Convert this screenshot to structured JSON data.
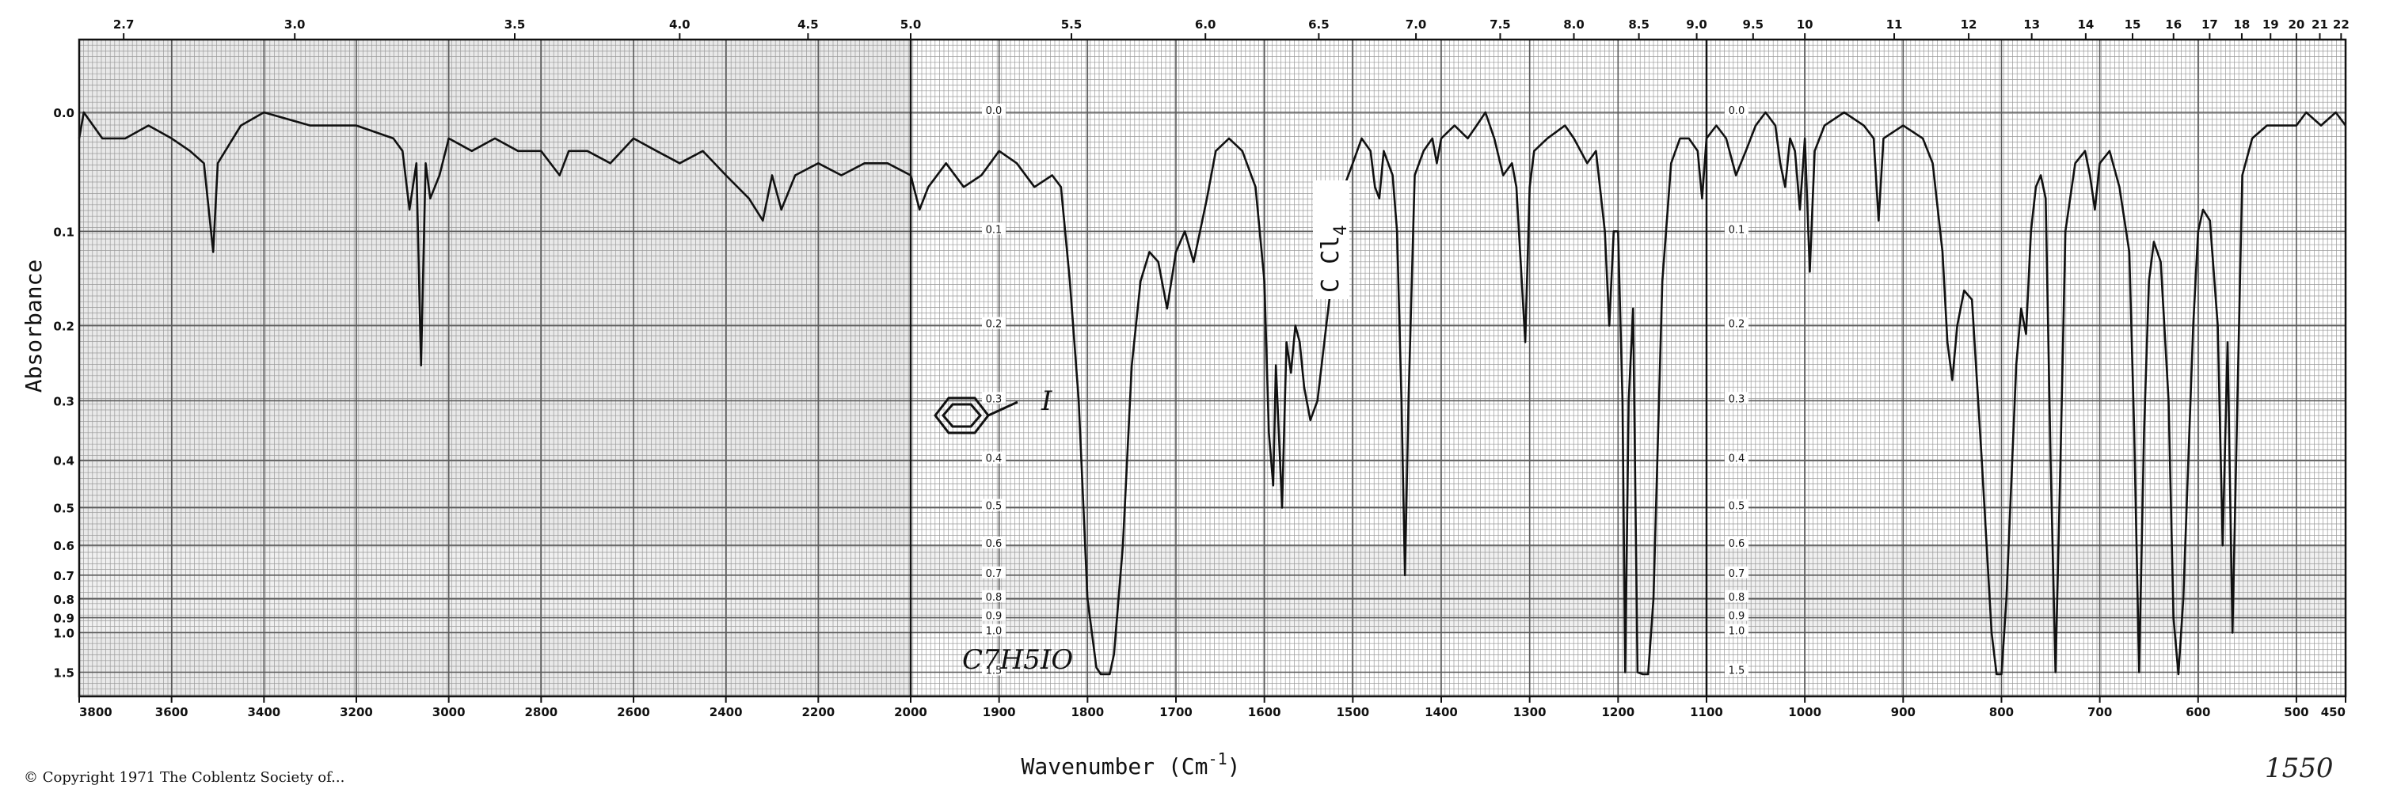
{
  "chart_data": {
    "type": "line",
    "title": "",
    "xlabel": "Wavenumber (Cm",
    "xlabel_sup": "-1",
    "xlabel_close": ")",
    "ylabel": "Absorbance",
    "y_scale": "log-absorbance",
    "grid": true,
    "top_ticks": [
      "2.7",
      "3.0",
      "3.5",
      "4.0",
      "4.5",
      "5.0",
      "5.5",
      "6.0",
      "6.5",
      "7.0",
      "7.5",
      "8.0",
      "8.5",
      "9.0",
      "9.5",
      "10",
      "11",
      "12",
      "13",
      "14",
      "15",
      "16",
      "17",
      "18",
      "19",
      "20",
      "21",
      "22"
    ],
    "bottom_ticks": [
      {
        "label": "3800",
        "v": 3800
      },
      {
        "label": "3600",
        "v": 3600
      },
      {
        "label": "3400",
        "v": 3400
      },
      {
        "label": "3200",
        "v": 3200
      },
      {
        "label": "3000",
        "v": 3000
      },
      {
        "label": "2800",
        "v": 2800
      },
      {
        "label": "2600",
        "v": 2600
      },
      {
        "label": "2400",
        "v": 2400
      },
      {
        "label": "2200",
        "v": 2200
      },
      {
        "label": "2000",
        "v": 2000
      },
      {
        "label": "1900",
        "v": 1900
      },
      {
        "label": "1800",
        "v": 1800
      },
      {
        "label": "1700",
        "v": 1700
      },
      {
        "label": "1600",
        "v": 1600
      },
      {
        "label": "1500",
        "v": 1500
      },
      {
        "label": "1400",
        "v": 1400
      },
      {
        "label": "1300",
        "v": 1300
      },
      {
        "label": "1200",
        "v": 1200
      },
      {
        "label": "1100",
        "v": 1100
      },
      {
        "label": "1000",
        "v": 1000
      },
      {
        "label": "900",
        "v": 900
      },
      {
        "label": "800",
        "v": 800
      },
      {
        "label": "700",
        "v": 700
      },
      {
        "label": "600",
        "v": 600
      },
      {
        "label": "500",
        "v": 500
      },
      {
        "label": "450",
        "v": 450
      }
    ],
    "y_ticks": [
      {
        "label": "0.0",
        "v": 0.0
      },
      {
        "label": "0.1",
        "v": 0.1
      },
      {
        "label": "0.2",
        "v": 0.2
      },
      {
        "label": "0.3",
        "v": 0.3
      },
      {
        "label": "0.4",
        "v": 0.4
      },
      {
        "label": "0.5",
        "v": 0.5
      },
      {
        "label": "0.6",
        "v": 0.6
      },
      {
        "label": "0.7",
        "v": 0.7
      },
      {
        "label": "0.8",
        "v": 0.8
      },
      {
        "label": "0.9",
        "v": 0.9
      },
      {
        "label": "1.0",
        "v": 1.0
      },
      {
        "label": "1.5",
        "v": 1.5
      }
    ],
    "series": [
      {
        "points": [
          [
            3800,
            0.02
          ],
          [
            3790,
            0.0
          ],
          [
            3750,
            0.02
          ],
          [
            3700,
            0.02
          ],
          [
            3650,
            0.01
          ],
          [
            3600,
            0.02
          ],
          [
            3560,
            0.03
          ],
          [
            3530,
            0.04
          ],
          [
            3510,
            0.12
          ],
          [
            3500,
            0.04
          ],
          [
            3450,
            0.01
          ],
          [
            3400,
            0.0
          ],
          [
            3300,
            0.01
          ],
          [
            3200,
            0.01
          ],
          [
            3120,
            0.02
          ],
          [
            3100,
            0.03
          ],
          [
            3085,
            0.08
          ],
          [
            3070,
            0.04
          ],
          [
            3060,
            0.25
          ],
          [
            3050,
            0.04
          ],
          [
            3040,
            0.07
          ],
          [
            3020,
            0.05
          ],
          [
            3000,
            0.02
          ],
          [
            2950,
            0.03
          ],
          [
            2900,
            0.02
          ],
          [
            2850,
            0.03
          ],
          [
            2800,
            0.03
          ],
          [
            2760,
            0.05
          ],
          [
            2740,
            0.03
          ],
          [
            2700,
            0.03
          ],
          [
            2650,
            0.04
          ],
          [
            2600,
            0.02
          ],
          [
            2550,
            0.03
          ],
          [
            2500,
            0.04
          ],
          [
            2450,
            0.03
          ],
          [
            2400,
            0.05
          ],
          [
            2350,
            0.07
          ],
          [
            2320,
            0.09
          ],
          [
            2300,
            0.05
          ],
          [
            2280,
            0.08
          ],
          [
            2250,
            0.05
          ],
          [
            2200,
            0.04
          ],
          [
            2150,
            0.05
          ],
          [
            2100,
            0.04
          ],
          [
            2050,
            0.04
          ],
          [
            2000,
            0.05
          ],
          [
            1990,
            0.08
          ],
          [
            1980,
            0.06
          ],
          [
            1960,
            0.04
          ],
          [
            1940,
            0.06
          ],
          [
            1920,
            0.05
          ],
          [
            1900,
            0.03
          ],
          [
            1880,
            0.04
          ],
          [
            1860,
            0.06
          ],
          [
            1840,
            0.05
          ],
          [
            1830,
            0.06
          ],
          [
            1820,
            0.15
          ],
          [
            1810,
            0.3
          ],
          [
            1800,
            0.8
          ],
          [
            1790,
            1.4
          ],
          [
            1785,
            1.55
          ],
          [
            1775,
            1.55
          ],
          [
            1770,
            1.2
          ],
          [
            1760,
            0.6
          ],
          [
            1750,
            0.25
          ],
          [
            1740,
            0.15
          ],
          [
            1730,
            0.12
          ],
          [
            1720,
            0.13
          ],
          [
            1710,
            0.18
          ],
          [
            1700,
            0.12
          ],
          [
            1690,
            0.1
          ],
          [
            1680,
            0.13
          ],
          [
            1665,
            0.07
          ],
          [
            1655,
            0.03
          ],
          [
            1640,
            0.02
          ],
          [
            1625,
            0.03
          ],
          [
            1610,
            0.06
          ],
          [
            1600,
            0.15
          ],
          [
            1595,
            0.35
          ],
          [
            1590,
            0.45
          ],
          [
            1587,
            0.25
          ],
          [
            1580,
            0.5
          ],
          [
            1575,
            0.22
          ],
          [
            1570,
            0.26
          ],
          [
            1565,
            0.2
          ],
          [
            1560,
            0.22
          ],
          [
            1555,
            0.28
          ],
          [
            1548,
            0.33
          ],
          [
            1540,
            0.3
          ],
          [
            1530,
            0.2
          ],
          [
            1520,
            0.12
          ],
          [
            1510,
            0.06
          ],
          [
            1500,
            0.04
          ],
          [
            1490,
            0.02
          ],
          [
            1480,
            0.03
          ],
          [
            1475,
            0.06
          ],
          [
            1470,
            0.07
          ],
          [
            1465,
            0.03
          ],
          [
            1455,
            0.05
          ],
          [
            1450,
            0.1
          ],
          [
            1445,
            0.3
          ],
          [
            1441,
            0.7
          ],
          [
            1437,
            0.3
          ],
          [
            1430,
            0.05
          ],
          [
            1420,
            0.03
          ],
          [
            1410,
            0.02
          ],
          [
            1405,
            0.04
          ],
          [
            1400,
            0.02
          ],
          [
            1385,
            0.01
          ],
          [
            1370,
            0.02
          ],
          [
            1360,
            0.01
          ],
          [
            1350,
            0.0
          ],
          [
            1340,
            0.02
          ],
          [
            1330,
            0.05
          ],
          [
            1320,
            0.04
          ],
          [
            1315,
            0.06
          ],
          [
            1305,
            0.22
          ],
          [
            1300,
            0.06
          ],
          [
            1295,
            0.03
          ],
          [
            1280,
            0.02
          ],
          [
            1260,
            0.01
          ],
          [
            1250,
            0.02
          ],
          [
            1235,
            0.04
          ],
          [
            1225,
            0.03
          ],
          [
            1215,
            0.1
          ],
          [
            1210,
            0.2
          ],
          [
            1205,
            0.1
          ],
          [
            1200,
            0.1
          ],
          [
            1195,
            0.3
          ],
          [
            1192,
            1.5
          ],
          [
            1188,
            0.3
          ],
          [
            1183,
            0.18
          ],
          [
            1178,
            1.5
          ],
          [
            1172,
            1.55
          ],
          [
            1166,
            1.55
          ],
          [
            1160,
            0.8
          ],
          [
            1150,
            0.15
          ],
          [
            1140,
            0.04
          ],
          [
            1130,
            0.02
          ],
          [
            1120,
            0.02
          ],
          [
            1110,
            0.03
          ],
          [
            1105,
            0.07
          ],
          [
            1100,
            0.02
          ],
          [
            1090,
            0.01
          ],
          [
            1080,
            0.02
          ],
          [
            1070,
            0.05
          ],
          [
            1060,
            0.03
          ],
          [
            1050,
            0.01
          ],
          [
            1040,
            0.0
          ],
          [
            1030,
            0.01
          ],
          [
            1025,
            0.04
          ],
          [
            1020,
            0.06
          ],
          [
            1015,
            0.02
          ],
          [
            1010,
            0.03
          ],
          [
            1005,
            0.08
          ],
          [
            1000,
            0.02
          ],
          [
            995,
            0.14
          ],
          [
            990,
            0.03
          ],
          [
            980,
            0.01
          ],
          [
            960,
            0.0
          ],
          [
            940,
            0.01
          ],
          [
            930,
            0.02
          ],
          [
            925,
            0.09
          ],
          [
            920,
            0.02
          ],
          [
            900,
            0.01
          ],
          [
            880,
            0.02
          ],
          [
            870,
            0.04
          ],
          [
            860,
            0.12
          ],
          [
            855,
            0.22
          ],
          [
            850,
            0.27
          ],
          [
            845,
            0.2
          ],
          [
            838,
            0.16
          ],
          [
            830,
            0.17
          ],
          [
            820,
            0.4
          ],
          [
            810,
            1.0
          ],
          [
            805,
            1.55
          ],
          [
            800,
            1.55
          ],
          [
            795,
            0.8
          ],
          [
            785,
            0.25
          ],
          [
            780,
            0.18
          ],
          [
            775,
            0.21
          ],
          [
            770,
            0.1
          ],
          [
            765,
            0.06
          ],
          [
            760,
            0.05
          ],
          [
            755,
            0.07
          ],
          [
            750,
            0.4
          ],
          [
            745,
            1.5
          ],
          [
            740,
            0.4
          ],
          [
            735,
            0.1
          ],
          [
            725,
            0.04
          ],
          [
            715,
            0.03
          ],
          [
            710,
            0.05
          ],
          [
            705,
            0.08
          ],
          [
            700,
            0.04
          ],
          [
            690,
            0.03
          ],
          [
            680,
            0.06
          ],
          [
            670,
            0.12
          ],
          [
            665,
            0.35
          ],
          [
            660,
            1.5
          ],
          [
            655,
            0.35
          ],
          [
            650,
            0.15
          ],
          [
            645,
            0.11
          ],
          [
            638,
            0.13
          ],
          [
            630,
            0.3
          ],
          [
            625,
            0.9
          ],
          [
            620,
            1.55
          ],
          [
            615,
            0.8
          ],
          [
            605,
            0.2
          ],
          [
            600,
            0.1
          ],
          [
            595,
            0.08
          ],
          [
            588,
            0.09
          ],
          [
            580,
            0.2
          ],
          [
            575,
            0.6
          ],
          [
            570,
            0.22
          ],
          [
            565,
            1.0
          ],
          [
            560,
            0.3
          ],
          [
            555,
            0.05
          ],
          [
            545,
            0.02
          ],
          [
            530,
            0.01
          ],
          [
            500,
            0.01
          ],
          [
            490,
            0.0
          ],
          [
            475,
            0.01
          ],
          [
            460,
            0.0
          ],
          [
            450,
            0.01
          ]
        ]
      }
    ]
  },
  "annotations": {
    "ccl4_label": "C Cl",
    "ccl4_sub": "4",
    "iodo_label": "I",
    "formula": "C7H5IO",
    "serial": "1550",
    "copyright": "© Copyright 1971   The Coblentz Society of..."
  },
  "colors": {
    "ink": "#111111",
    "grid_dark": "#5a5a5a",
    "grid_light": "#9a9a9a",
    "paper": "#ffffff"
  }
}
